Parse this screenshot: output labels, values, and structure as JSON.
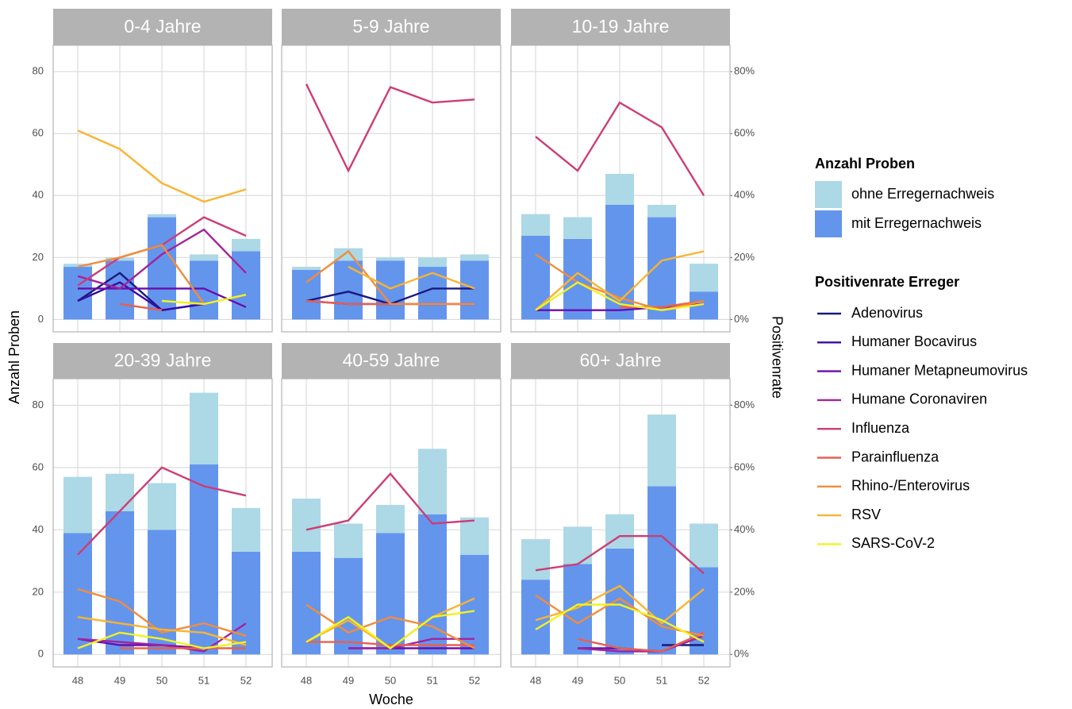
{
  "chart_data": {
    "type": "bar",
    "x_label": "Woche",
    "y_label": "Anzahl Proben",
    "y2_label": "Positivenrate",
    "categories": [
      "48",
      "49",
      "50",
      "51",
      "52"
    ],
    "ylim": [
      -4,
      88.5
    ],
    "yticks": [
      0,
      20,
      40,
      60,
      80
    ],
    "y2lim": [
      -4,
      88.5
    ],
    "y2ticks": [
      {
        "value": 0,
        "label": "0%"
      },
      {
        "value": 20,
        "label": "20%"
      },
      {
        "value": 40,
        "label": "40%"
      },
      {
        "value": 60,
        "label": "60%"
      },
      {
        "value": 80,
        "label": "80%"
      }
    ],
    "grid": true,
    "bar_legend_title": "Anzahl Proben",
    "line_legend_title": "Positivenrate Erreger",
    "series": [
      {
        "name": "mit Erregernachweis",
        "color": "#6495ed",
        "type": "bar"
      },
      {
        "name": "ohne Erregernachweis",
        "color": "#add8e6",
        "type": "bar"
      },
      {
        "name": "Adenovirus",
        "color": "#1a1a80",
        "type": "line",
        "axis": "y2"
      },
      {
        "name": "Humaner Bocavirus",
        "color": "#3a0ca3",
        "type": "line",
        "axis": "y2"
      },
      {
        "name": "Humaner Metapneumovirus",
        "color": "#6a0dad",
        "type": "line",
        "axis": "y2"
      },
      {
        "name": "Humane Coronaviren",
        "color": "#a1249d",
        "type": "line",
        "axis": "y2"
      },
      {
        "name": "Influenza",
        "color": "#cc3d77",
        "type": "line",
        "axis": "y2"
      },
      {
        "name": "Parainfluenza",
        "color": "#e8604d",
        "type": "line",
        "axis": "y2"
      },
      {
        "name": "Rhino-/Enterovirus",
        "color": "#f28c3c",
        "type": "line",
        "axis": "y2"
      },
      {
        "name": "RSV",
        "color": "#fbb32f",
        "type": "line",
        "axis": "y2"
      },
      {
        "name": "SARS-CoV-2",
        "color": "#f2f21e",
        "type": "line",
        "axis": "y2"
      }
    ],
    "panels": [
      {
        "title": "0-4 Jahre",
        "values": [
          [
            17,
            19,
            33,
            19,
            22
          ],
          [
            1,
            1,
            1,
            2,
            4
          ],
          [
            6,
            15,
            3,
            5,
            null
          ],
          [
            6,
            12,
            3,
            5,
            null
          ],
          [
            10,
            10,
            10,
            10,
            4
          ],
          [
            14,
            10,
            21,
            29,
            15
          ],
          [
            11,
            20,
            24,
            33,
            27
          ],
          [
            null,
            5,
            3,
            null,
            null
          ],
          [
            17,
            20,
            24,
            5,
            null
          ],
          [
            61,
            55,
            44,
            38,
            42
          ],
          [
            null,
            null,
            6,
            5,
            8
          ]
        ]
      },
      {
        "title": "5-9 Jahre",
        "values": [
          [
            16,
            19,
            19,
            17,
            19
          ],
          [
            1,
            4,
            1,
            3,
            2
          ],
          [
            6,
            9,
            5,
            10,
            10
          ],
          [
            6,
            5,
            5,
            5,
            5
          ],
          [
            null,
            null,
            null,
            null,
            null
          ],
          [
            null,
            null,
            null,
            null,
            null
          ],
          [
            76,
            48,
            75,
            70,
            71
          ],
          [
            6,
            5,
            5,
            5,
            5
          ],
          [
            12,
            22,
            5,
            5,
            5
          ],
          [
            null,
            17,
            10,
            15,
            10
          ],
          [
            null,
            null,
            null,
            null,
            null
          ]
        ]
      },
      {
        "title": "10-19 Jahre",
        "values": [
          [
            27,
            26,
            37,
            33,
            9
          ],
          [
            7,
            7,
            10,
            4,
            9
          ],
          [
            null,
            null,
            null,
            null,
            null
          ],
          [
            null,
            null,
            null,
            null,
            null
          ],
          [
            3,
            3,
            3,
            4,
            5
          ],
          [
            null,
            null,
            null,
            null,
            null
          ],
          [
            59,
            48,
            70,
            62,
            40
          ],
          [
            null,
            null,
            4,
            4,
            6
          ],
          [
            21,
            12,
            7,
            3,
            6
          ],
          [
            3,
            15,
            6,
            19,
            22
          ],
          [
            3,
            12,
            5,
            3,
            5
          ]
        ]
      },
      {
        "title": "20-39 Jahre",
        "values": [
          [
            39,
            46,
            40,
            61,
            33
          ],
          [
            18,
            12,
            15,
            23,
            14
          ],
          [
            null,
            null,
            null,
            null,
            null
          ],
          [
            null,
            null,
            null,
            null,
            null
          ],
          [
            5,
            3,
            3,
            2,
            null
          ],
          [
            5,
            4,
            3,
            1,
            10
          ],
          [
            32,
            46,
            60,
            54,
            51
          ],
          [
            null,
            2,
            2,
            2,
            2
          ],
          [
            21,
            17,
            7,
            10,
            6
          ],
          [
            12,
            10,
            8,
            7,
            3
          ],
          [
            2,
            7,
            5,
            2,
            4
          ]
        ]
      },
      {
        "title": "40-59 Jahre",
        "values": [
          [
            33,
            31,
            39,
            45,
            32
          ],
          [
            17,
            11,
            9,
            21,
            12
          ],
          [
            null,
            null,
            null,
            null,
            null
          ],
          [
            null,
            null,
            null,
            null,
            null
          ],
          [
            null,
            2,
            2,
            2,
            2
          ],
          [
            null,
            2,
            2,
            5,
            5
          ],
          [
            40,
            43,
            58,
            42,
            43
          ],
          [
            4,
            4,
            3,
            3,
            3
          ],
          [
            16,
            7,
            12,
            9,
            2
          ],
          [
            4,
            11,
            2,
            12,
            18
          ],
          [
            4,
            12,
            2,
            12,
            14
          ]
        ]
      },
      {
        "title": "60+ Jahre",
        "values": [
          [
            24,
            29,
            34,
            54,
            28
          ],
          [
            13,
            12,
            11,
            23,
            14
          ],
          [
            null,
            null,
            null,
            3,
            3
          ],
          [
            null,
            null,
            null,
            null,
            null
          ],
          [
            null,
            2,
            2,
            1,
            null
          ],
          [
            null,
            2,
            1,
            1,
            6
          ],
          [
            27,
            29,
            38,
            38,
            26
          ],
          [
            null,
            5,
            2,
            1,
            7
          ],
          [
            19,
            10,
            18,
            9,
            6
          ],
          [
            11,
            15,
            22,
            10,
            21
          ],
          [
            8,
            16,
            16,
            11,
            4
          ]
        ]
      }
    ]
  }
}
